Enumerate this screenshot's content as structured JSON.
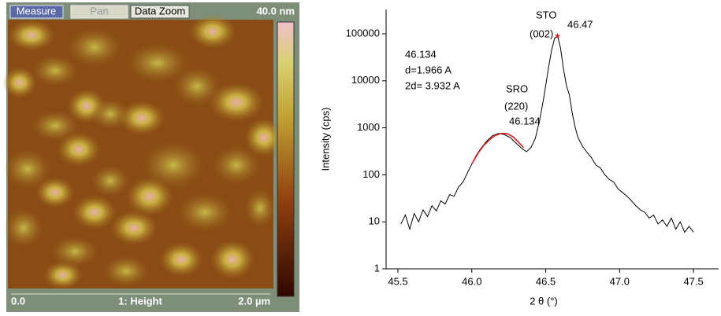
{
  "afm_panel": {
    "buttons": [
      "Measure",
      "Pan",
      "Data Zoom"
    ],
    "scale_max": "40.0 nm",
    "footer": {
      "left": "0.0",
      "center": "1: Height",
      "right": "2.0 µm"
    }
  },
  "chart_data": {
    "type": "line",
    "log_y": true,
    "ylabel": "Intensity (cps)",
    "xlabel": "2 θ (°)",
    "xlim": [
      45.42,
      47.67
    ],
    "ylim": [
      1,
      330000
    ],
    "xticks": [
      45.5,
      {
        "value": 46,
        "label": "46.0"
      },
      46.5,
      {
        "value": 47,
        "label": "47.0"
      },
      47.5
    ],
    "yticks": [
      1,
      10,
      100,
      1000,
      10000,
      100000
    ],
    "annotations": [
      "STO",
      "(002)",
      "46.47",
      "46.134",
      "d=1.966 A",
      "2d= 3.932 A",
      "SRO",
      "(220)",
      "46.134"
    ],
    "series": [
      {
        "color": "#000000",
        "x": [
          45.52,
          45.55,
          45.58,
          45.61,
          45.64,
          45.67,
          45.7,
          45.73,
          45.76,
          45.79,
          45.82,
          45.85,
          45.88,
          45.91,
          45.94,
          45.97,
          46.0,
          46.03,
          46.06,
          46.1,
          46.14,
          46.18,
          46.22,
          46.26,
          46.3,
          46.34,
          46.37,
          46.4,
          46.43,
          46.46,
          46.49,
          46.52,
          46.54,
          46.56,
          46.58,
          46.6,
          46.62,
          46.64,
          46.66,
          46.68,
          46.7,
          46.72,
          46.75,
          46.78,
          46.81,
          46.84,
          46.87,
          46.9,
          46.93,
          46.96,
          46.99,
          47.02,
          47.05,
          47.08,
          47.11,
          47.14,
          47.17,
          47.2,
          47.23,
          47.26,
          47.29,
          47.32,
          47.35,
          47.38,
          47.41,
          47.44,
          47.47,
          47.5
        ],
        "values": [
          9,
          14,
          7,
          15,
          10,
          18,
          13,
          22,
          17,
          28,
          24,
          38,
          35,
          55,
          70,
          110,
          170,
          260,
          360,
          520,
          680,
          760,
          720,
          620,
          470,
          360,
          310,
          380,
          600,
          1500,
          5000,
          20000,
          45000,
          80000,
          90000,
          50000,
          18000,
          8000,
          5000,
          2000,
          1000,
          600,
          400,
          300,
          230,
          160,
          140,
          100,
          80,
          70,
          50,
          42,
          35,
          28,
          22,
          18,
          16,
          12,
          14,
          9,
          11,
          8,
          12,
          7,
          10,
          6,
          8,
          6
        ]
      },
      {
        "color": "#d62020",
        "x": [
          46.0,
          46.04,
          46.08,
          46.12,
          46.16,
          46.2,
          46.24,
          46.28,
          46.32,
          46.35
        ],
        "values": [
          170,
          280,
          420,
          560,
          690,
          760,
          750,
          640,
          480,
          380
        ]
      },
      {
        "color": "#d62020",
        "marker": "star",
        "x": [
          46.58
        ],
        "values": [
          90000
        ]
      }
    ]
  }
}
